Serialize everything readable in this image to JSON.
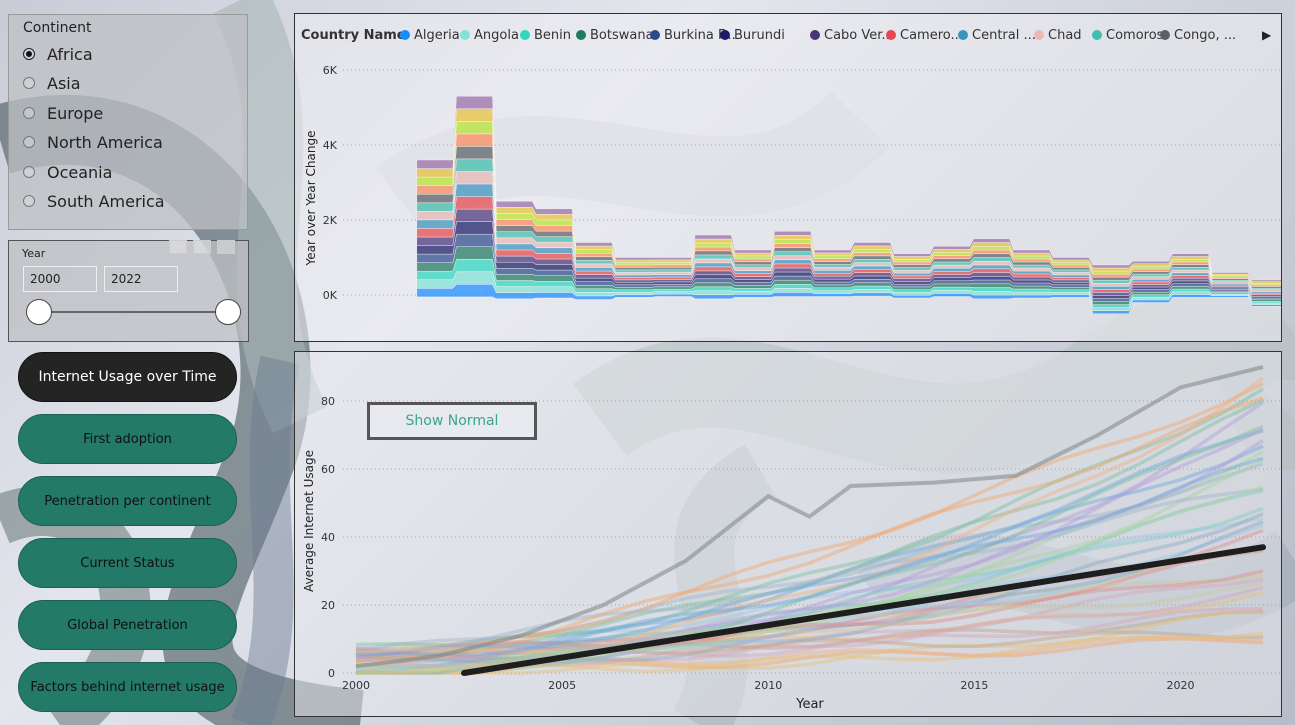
{
  "colors": {
    "button_teal": "#237a68",
    "button_active": "#242424",
    "trend_line": "#1e1e1e"
  },
  "continent_filter": {
    "title": "Continent",
    "options": [
      {
        "label": "Africa",
        "selected": true
      },
      {
        "label": "Asia",
        "selected": false
      },
      {
        "label": "Europe",
        "selected": false
      },
      {
        "label": "North America",
        "selected": false
      },
      {
        "label": "Oceania",
        "selected": false
      },
      {
        "label": "South America",
        "selected": false
      }
    ]
  },
  "year_filter": {
    "title": "Year",
    "start": "2000",
    "end": "2022"
  },
  "nav_buttons": [
    {
      "label": "Internet Usage over Time",
      "active": true
    },
    {
      "label": "First adoption",
      "active": false
    },
    {
      "label": "Penetration per continent",
      "active": false
    },
    {
      "label": "Current Status",
      "active": false
    },
    {
      "label": "Global Penetration",
      "active": false
    },
    {
      "label": "Factors behind internet usage",
      "active": false
    }
  ],
  "show_button": {
    "label": "Show Normal"
  },
  "chart_data": [
    {
      "type": "area",
      "title": "",
      "ylabel": "Year over Year Change",
      "legend_title": "Country Name",
      "legend_placement": "top",
      "legend": [
        {
          "name": "Algeria",
          "color": "#1a8cff"
        },
        {
          "name": "Angola",
          "color": "#7fe3d6"
        },
        {
          "name": "Benin",
          "color": "#2fd6c0"
        },
        {
          "name": "Botswana",
          "color": "#1f7a5e"
        },
        {
          "name": "Burkina F...",
          "color": "#2d4b8c"
        },
        {
          "name": "Burundi",
          "color": "#1b1b66"
        },
        {
          "name": "Cabo Ver...",
          "color": "#4b357a"
        },
        {
          "name": "Camero...",
          "color": "#e5484d"
        },
        {
          "name": "Central ...",
          "color": "#3c93bf"
        },
        {
          "name": "Chad",
          "color": "#eab9b6"
        },
        {
          "name": "Comoros",
          "color": "#3fbfad"
        },
        {
          "name": "Congo, ...",
          "color": "#5a6066"
        }
      ],
      "yticks": [
        "0K",
        "2K",
        "4K",
        "6K"
      ],
      "ylim": [
        -500,
        6000
      ],
      "x": [
        2000,
        2001,
        2002,
        2003,
        2004,
        2005,
        2006,
        2007,
        2008,
        2009,
        2010,
        2011,
        2012,
        2013,
        2014,
        2015,
        2016,
        2017,
        2018,
        2019,
        2020,
        2021,
        2022
      ],
      "total_peak": [
        0,
        3600,
        5300,
        2500,
        2300,
        1400,
        1000,
        1000,
        1600,
        1200,
        1700,
        1200,
        1400,
        1100,
        1300,
        1500,
        1200,
        1000,
        800,
        900,
        1100,
        600,
        400
      ],
      "total_min": [
        0,
        -50,
        -50,
        -100,
        -80,
        -120,
        -60,
        -40,
        -100,
        -60,
        -40,
        -40,
        -30,
        -80,
        -40,
        -100,
        -80,
        -60,
        -500,
        -200,
        -60,
        -60,
        -300
      ]
    },
    {
      "type": "line",
      "title": "",
      "xlabel": "Year",
      "ylabel": "Average Internet Usage",
      "xticks": [
        "2000",
        "2005",
        "2010",
        "2015",
        "2020"
      ],
      "yticks": [
        "0",
        "20",
        "40",
        "60",
        "80"
      ],
      "xlim": [
        2000,
        2022
      ],
      "ylim": [
        0,
        92
      ],
      "trend": {
        "x": [
          2000,
          2022
        ],
        "y": [
          -5,
          37
        ]
      },
      "highlighted_series": {
        "x": [
          2000,
          2002,
          2004,
          2006,
          2008,
          2010,
          2011,
          2012,
          2014,
          2016,
          2018,
          2020,
          2022
        ],
        "y": [
          2,
          5,
          11,
          20,
          33,
          52,
          46,
          55,
          56,
          58,
          70,
          84,
          90
        ]
      },
      "series_count": 40
    }
  ]
}
